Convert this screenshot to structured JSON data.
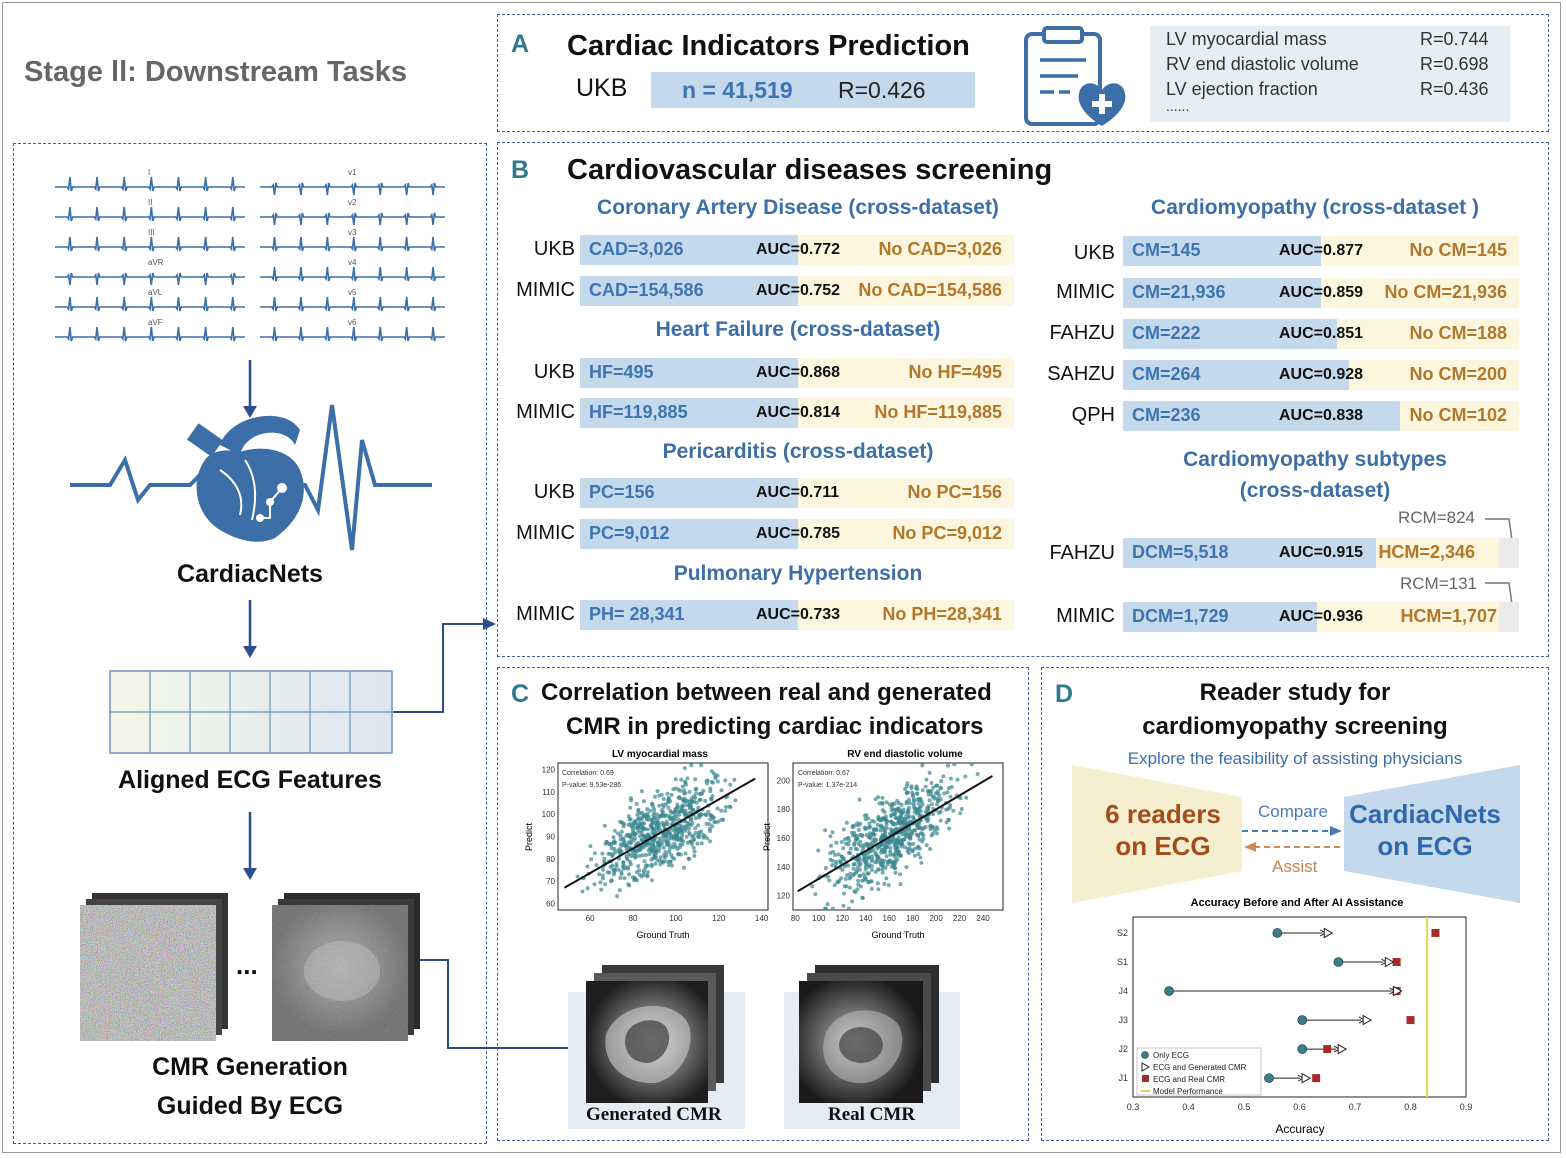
{
  "stage_title": "Stage ll:  Downstream Tasks",
  "colors": {
    "dash": "#3f5f9a",
    "accent": "#2f7a8e",
    "bar_fill": "#c5d9ec",
    "bar_bg": "#fbf6dd",
    "positive_text": "#3f74b3",
    "negative_text": "#b2772a",
    "ecg_line": "#3c6ea8"
  },
  "left_panel": {
    "ecg_leads_left": [
      "I",
      "II",
      "III",
      "aVR",
      "aVL",
      "aVF"
    ],
    "ecg_leads_right": [
      "v1",
      "v2",
      "v3",
      "v4",
      "v5",
      "v6"
    ],
    "model_name": "CardiacNets",
    "features_label": "Aligned ECG Features",
    "ellipsis": "...",
    "generation_label_1": "CMR Generation",
    "generation_label_2": "Guided By ECG",
    "icons": [
      "ecg-leads-icon",
      "heart-circuit-icon",
      "feature-grid-icon",
      "noisy-cmr-stack-icon",
      "denoised-cmr-stack-icon"
    ]
  },
  "section_a": {
    "letter": "A",
    "title": "Cardiac Indicators  Prediction",
    "dataset": "UKB",
    "n": "n = 41,519",
    "r": "R=0.426",
    "icon": "clipboard-heart-icon",
    "indicators": [
      {
        "name": "LV myocardial mass",
        "r": "R=0.744"
      },
      {
        "name": "RV end diastolic volume",
        "r": "R=0.698"
      },
      {
        "name": "LV ejection fraction",
        "r": "R=0.436"
      }
    ],
    "more": "......"
  },
  "section_b": {
    "letter": "B",
    "title": "Cardiovascular diseases screening",
    "left_groups": [
      {
        "title": "Coronary Artery Disease (cross-dataset)",
        "rows": [
          {
            "dataset": "UKB",
            "pos": "CAD=3,026",
            "auc_label": "AUC=",
            "auc": 0.772,
            "neg": "No CAD=3,026"
          },
          {
            "dataset": "MIMIC",
            "pos": "CAD=154,586",
            "auc_label": "AUC=",
            "auc": 0.752,
            "neg": "No CAD=154,586"
          }
        ]
      },
      {
        "title": "Heart Failure (cross-dataset)",
        "rows": [
          {
            "dataset": "UKB",
            "pos": "HF=495",
            "auc_label": "AUC=",
            "auc": 0.868,
            "neg": "No HF=495"
          },
          {
            "dataset": "MIMIC",
            "pos": "HF=119,885",
            "auc_label": "AUC=",
            "auc": 0.814,
            "neg": "No HF=119,885"
          }
        ]
      },
      {
        "title": "Pericarditis (cross-dataset)",
        "rows": [
          {
            "dataset": "UKB",
            "pos": "PC=156",
            "auc_label": "AUC=",
            "auc": 0.711,
            "neg": "No PC=156"
          },
          {
            "dataset": "MIMIC",
            "pos": "PC=9,012",
            "auc_label": "AUC=",
            "auc": 0.785,
            "neg": "No PC=9,012"
          }
        ]
      },
      {
        "title": "Pulmonary Hypertension",
        "rows": [
          {
            "dataset": "MIMIC",
            "pos": "PH= 28,341",
            "auc_label": "AUC=",
            "auc": 0.733,
            "neg": "No PH=28,341"
          }
        ]
      }
    ],
    "cm_title": "Cardiomyopathy (cross-dataset )",
    "cm_rows": [
      {
        "dataset": "UKB",
        "pos": "CM=145",
        "auc_label": "AUC=",
        "auc": 0.877,
        "neg": "No CM=145",
        "fill": 0.5
      },
      {
        "dataset": "MIMIC",
        "pos": "CM=21,936",
        "auc_label": "AUC=",
        "auc": 0.859,
        "neg": "No CM=21,936",
        "fill": 0.5
      },
      {
        "dataset": "FAHZU",
        "pos": "CM=222",
        "auc_label": "AUC=",
        "auc": 0.851,
        "neg": "No CM=188",
        "fill": 0.54
      },
      {
        "dataset": "SAHZU",
        "pos": "CM=264",
        "auc_label": "AUC=",
        "auc": 0.928,
        "neg": "No CM=200",
        "fill": 0.57
      },
      {
        "dataset": "QPH",
        "pos": "CM=236",
        "auc_label": "AUC=",
        "auc": 0.838,
        "neg": "No CM=102",
        "fill": 0.7
      }
    ],
    "subtypes_title_1": "Cardiomyopathy subtypes",
    "subtypes_title_2": "(cross-dataset)",
    "subtype_rows": [
      {
        "dataset": "FAHZU",
        "pos": "DCM=5,518",
        "auc_label": "AUC=",
        "auc": 0.915,
        "neg": "HCM=2,346",
        "rcm": "RCM=824",
        "fill": 0.64
      },
      {
        "dataset": "MIMIC",
        "pos": "DCM=1,729",
        "auc_label": "AUC=",
        "auc": 0.936,
        "neg": "HCM=1,707",
        "rcm": "RCM=131",
        "fill": 0.49
      }
    ]
  },
  "section_c": {
    "letter": "C",
    "title_1": "Correlation between real and generated",
    "title_2": "CMR in predicting cardiac indicators",
    "generated_label": "Generated CMR",
    "real_label": "Real CMR",
    "icons": [
      "generated-cmr-stack-icon",
      "real-cmr-stack-icon"
    ]
  },
  "section_d": {
    "letter": "D",
    "title_1": "Reader study for",
    "title_2": "cardiomyopathy screening",
    "subtitle": "Explore the feasibility of assisting physicians",
    "readers_1": "6 readers",
    "readers_2": "on ECG",
    "compare": "Compare",
    "assist": "Assist",
    "model_1": "CardiacNets",
    "model_2": "on ECG"
  },
  "chart_data": [
    {
      "type": "scatter",
      "title": "LV myocardial mass",
      "xlabel": "Ground Truth",
      "ylabel": "Predict",
      "xlim": [
        45,
        143
      ],
      "ylim": [
        57,
        123
      ],
      "xticks": [
        60,
        80,
        100,
        120,
        140
      ],
      "yticks": [
        60,
        70,
        80,
        90,
        100,
        110,
        120
      ],
      "annotations": [
        "Correlation: 0.69",
        "P-value: 9.53e-286"
      ],
      "fit_line": {
        "x": [
          48,
          137
        ],
        "y": [
          67,
          116
        ]
      },
      "color": "#3b8790"
    },
    {
      "type": "scatter",
      "title": "RV end diastolic volume",
      "xlabel": "Ground Truth",
      "ylabel": "Predict",
      "xlim": [
        78,
        257
      ],
      "ylim": [
        110,
        212
      ],
      "xticks": [
        80,
        100,
        120,
        140,
        160,
        180,
        200,
        220,
        240
      ],
      "yticks": [
        120,
        140,
        160,
        180,
        200
      ],
      "annotations": [
        "Correlation: 0.67",
        "P-value: 1.37e-214"
      ],
      "fit_line": {
        "x": [
          82,
          248
        ],
        "y": [
          123,
          203
        ]
      },
      "color": "#3b8790"
    },
    {
      "type": "dot_plot",
      "title": "Accuracy Before and After AI Assistance",
      "xlabel": "Accuracy",
      "ylabel": "",
      "xlim": [
        0.3,
        0.9
      ],
      "xticks": [
        0.3,
        0.4,
        0.5,
        0.6,
        0.7,
        0.8,
        0.9
      ],
      "categories": [
        "S2",
        "S1",
        "J4",
        "J3",
        "J2",
        "J1"
      ],
      "series": [
        {
          "name": "Only ECG",
          "values": [
            0.56,
            0.67,
            0.365,
            0.605,
            0.605,
            0.545
          ]
        },
        {
          "name": "ECG and Generated CMR",
          "values": [
            0.65,
            0.76,
            0.775,
            0.72,
            0.675,
            0.61
          ]
        },
        {
          "name": "ECG and Real CMR",
          "values": [
            0.845,
            0.775,
            0.775,
            0.8,
            0.65,
            0.63
          ]
        }
      ],
      "model_performance": {
        "name": "Model Performance",
        "value": 0.83
      },
      "legend_position": "bottom-left"
    }
  ]
}
